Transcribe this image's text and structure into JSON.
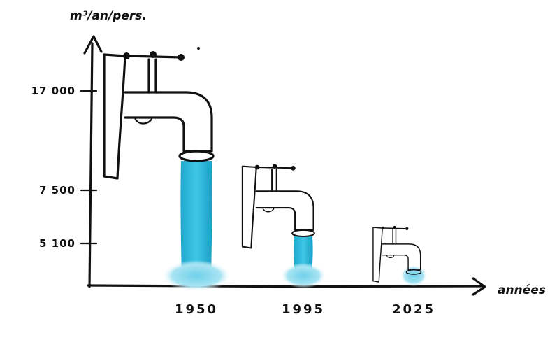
{
  "chart_data": {
    "type": "bar",
    "title": "",
    "ylabel": "m³/an/pers.",
    "xlabel": "années",
    "categories": [
      "1950",
      "1995",
      "2025"
    ],
    "values": [
      17000,
      7500,
      5100
    ],
    "yticks": [
      {
        "value": 17000,
        "label": "17 000"
      },
      {
        "value": 7500,
        "label": "7 500"
      },
      {
        "value": 5100,
        "label": "5 100"
      }
    ],
    "ylim": [
      0,
      20000
    ],
    "grid": false,
    "legend": "none",
    "colors": {
      "water": "#29b6d8",
      "water_light": "#9fe0f0",
      "ink": "#111111"
    }
  }
}
